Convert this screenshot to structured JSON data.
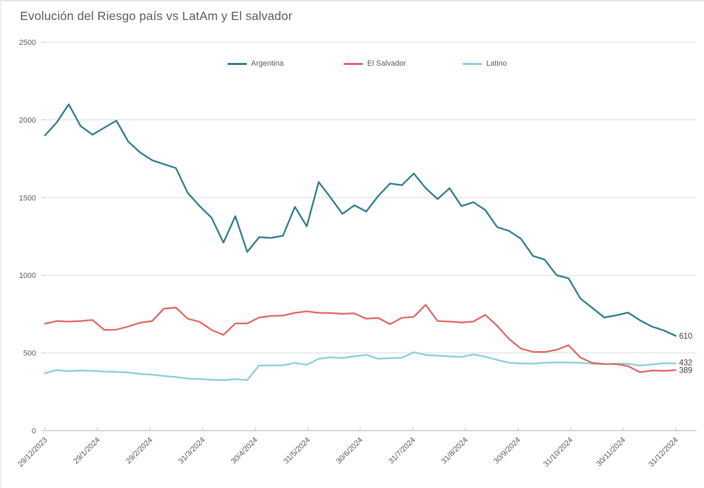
{
  "chart_data": {
    "type": "line",
    "title": "Evolución del Riesgo país vs LatAm y El salvador",
    "xlabel": "",
    "ylabel": "",
    "ylim": [
      0,
      2500
    ],
    "y_ticks": [
      0,
      500,
      1000,
      1500,
      2000,
      2500
    ],
    "grid": "horizontal",
    "legend_position": "top-center",
    "x_tick_labels": [
      "29/12/2023",
      "29/1/2024",
      "29/2/2024",
      "31/3/2024",
      "30/4/2024",
      "31/5/2024",
      "30/6/2024",
      "31/7/2024",
      "31/8/2024",
      "30/9/2024",
      "31/10/2024",
      "30/11/2024",
      "31/12/2024"
    ],
    "series": [
      {
        "name": "Argentina",
        "color": "#2d7d8d",
        "end_label": "610",
        "values": [
          1900,
          1985,
          2100,
          1960,
          1905,
          1950,
          1995,
          1860,
          1790,
          1740,
          1715,
          1690,
          1530,
          1445,
          1370,
          1210,
          1380,
          1150,
          1245,
          1240,
          1255,
          1440,
          1315,
          1600,
          1500,
          1395,
          1450,
          1410,
          1510,
          1590,
          1580,
          1655,
          1560,
          1490,
          1560,
          1445,
          1470,
          1420,
          1310,
          1285,
          1235,
          1125,
          1100,
          1000,
          980,
          850,
          790,
          728,
          742,
          760,
          710,
          670,
          645,
          610
        ]
      },
      {
        "name": "El Salvador",
        "color": "#dd6a66",
        "end_label": "389",
        "values": [
          688,
          705,
          702,
          705,
          712,
          648,
          650,
          670,
          695,
          705,
          785,
          792,
          720,
          700,
          648,
          616,
          690,
          690,
          728,
          738,
          740,
          758,
          768,
          758,
          757,
          752,
          755,
          720,
          725,
          685,
          726,
          732,
          810,
          705,
          702,
          696,
          702,
          745,
          675,
          590,
          528,
          507,
          506,
          520,
          550,
          470,
          436,
          429,
          428,
          415,
          376,
          387,
          385,
          389
        ]
      },
      {
        "name": "Latino",
        "color": "#8bced6",
        "end_label": "432",
        "values": [
          370,
          390,
          383,
          387,
          385,
          380,
          378,
          374,
          365,
          360,
          352,
          345,
          335,
          332,
          328,
          325,
          331,
          325,
          419,
          420,
          420,
          436,
          424,
          462,
          472,
          467,
          478,
          488,
          462,
          466,
          469,
          505,
          487,
          482,
          478,
          474,
          490,
          476,
          455,
          437,
          433,
          431,
          437,
          439,
          438,
          437,
          430,
          428,
          431,
          430,
          419,
          426,
          434,
          432
        ]
      }
    ],
    "colors": {
      "gridline": "#d9d9d9",
      "axis": "#bfbfbf",
      "labels": "#595959",
      "end_labels": "#3d3d3d"
    }
  }
}
